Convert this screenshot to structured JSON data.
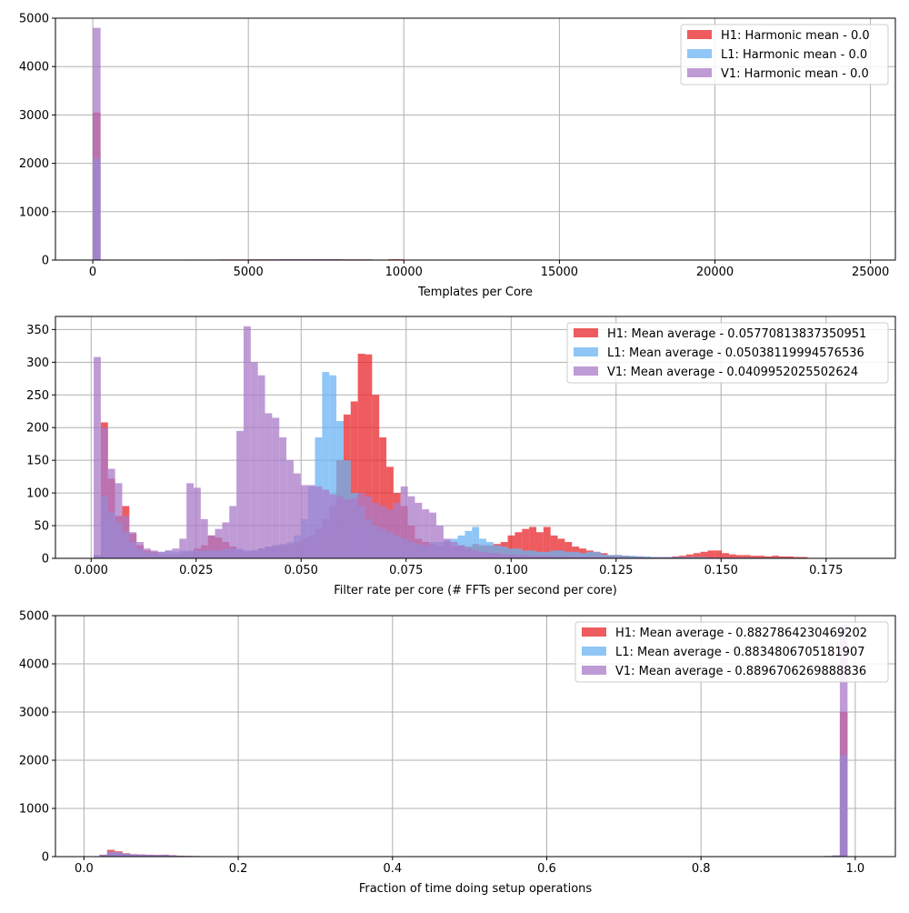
{
  "chart_data": [
    {
      "type": "histogram",
      "title": "",
      "xlabel": "Templates per Core",
      "ylabel": "",
      "xlim": [
        -1200,
        25800
      ],
      "ylim": [
        0,
        5000
      ],
      "xticks": [
        0,
        5000,
        10000,
        15000,
        20000,
        25000
      ],
      "yticks": [
        0,
        1000,
        2000,
        3000,
        4000,
        5000
      ],
      "grid": true,
      "legend_position": "top-right",
      "bin_edges": [
        0,
        250,
        2200,
        3000,
        4000,
        5000,
        6000,
        7000,
        8000,
        9000,
        9500,
        10000
      ],
      "series": [
        {
          "name": "H1: Harmonic mean  - 0.0",
          "color": "#e8262a",
          "counts": [
            3050,
            0,
            8,
            10,
            12,
            14,
            16,
            18,
            14,
            10,
            18
          ]
        },
        {
          "name": "L1: Harmonic mean  - 0.0",
          "color": "#69b3f2",
          "counts": [
            2100,
            0,
            6,
            8,
            10,
            12,
            14,
            14,
            12,
            8,
            4
          ]
        },
        {
          "name": "V1: Harmonic mean  - 0.0",
          "color": "#a97ac8",
          "counts": [
            4800,
            0,
            8,
            10,
            12,
            14,
            16,
            16,
            12,
            8,
            4
          ]
        }
      ]
    },
    {
      "type": "histogram",
      "title": "",
      "xlabel": "Filter rate per core (# FFTs per second per core)",
      "ylabel": "",
      "xlim": [
        -0.0085,
        0.1915
      ],
      "ylim": [
        0,
        370
      ],
      "xticks": [
        0.0,
        0.025,
        0.05,
        0.075,
        0.1,
        0.125,
        0.15,
        0.175
      ],
      "xtick_labels": [
        "0.000",
        "0.025",
        "0.050",
        "0.075",
        "0.100",
        "0.125",
        "0.150",
        "0.175"
      ],
      "yticks": [
        0,
        50,
        100,
        150,
        200,
        250,
        300,
        350
      ],
      "grid": true,
      "legend_position": "top-right",
      "bin_start": 0.0006,
      "bin_width": 0.0017,
      "series": [
        {
          "name": "H1: Mean average - 0.05770813837350951",
          "color": "#e8262a",
          "counts": [
            5,
            208,
            122,
            65,
            80,
            38,
            20,
            12,
            10,
            6,
            5,
            5,
            8,
            10,
            15,
            20,
            35,
            32,
            25,
            18,
            12,
            10,
            12,
            15,
            18,
            20,
            20,
            22,
            25,
            30,
            35,
            45,
            60,
            80,
            150,
            220,
            240,
            313,
            312,
            250,
            185,
            140,
            100,
            80,
            50,
            30,
            25,
            22,
            20,
            25,
            18,
            20,
            18,
            22,
            20,
            20,
            22,
            25,
            35,
            40,
            45,
            48,
            40,
            48,
            35,
            30,
            25,
            18,
            15,
            12,
            10,
            8,
            5,
            5,
            4,
            3,
            3,
            2,
            2,
            2,
            2,
            3,
            4,
            6,
            8,
            10,
            12,
            12,
            8,
            6,
            5,
            5,
            4,
            4,
            3,
            4,
            3,
            3,
            2,
            2
          ]
        },
        {
          "name": "L1: Mean average - 0.05038119994576536",
          "color": "#69b3f2",
          "counts": [
            5,
            95,
            70,
            55,
            40,
            25,
            15,
            10,
            8,
            10,
            12,
            10,
            12,
            12,
            12,
            12,
            12,
            12,
            15,
            15,
            15,
            12,
            12,
            15,
            18,
            20,
            22,
            25,
            35,
            60,
            110,
            185,
            285,
            280,
            210,
            150,
            100,
            80,
            60,
            50,
            45,
            40,
            35,
            30,
            25,
            22,
            20,
            25,
            25,
            28,
            30,
            35,
            42,
            48,
            30,
            25,
            20,
            18,
            15,
            15,
            12,
            12,
            10,
            10,
            12,
            12,
            10,
            10,
            8,
            10,
            10,
            6,
            5,
            5,
            4,
            4,
            3,
            3,
            2,
            2,
            2,
            2,
            2,
            2,
            2,
            2,
            1,
            1,
            1,
            1,
            1,
            1,
            1,
            1,
            1,
            1,
            1,
            0,
            0,
            0
          ]
        },
        {
          "name": "V1: Mean average - 0.0409952025502624",
          "color": "#a97ac8",
          "counts": [
            308,
            200,
            137,
            115,
            65,
            40,
            25,
            15,
            12,
            10,
            12,
            15,
            30,
            115,
            108,
            60,
            35,
            45,
            55,
            80,
            195,
            355,
            300,
            280,
            222,
            215,
            185,
            150,
            130,
            112,
            112,
            110,
            105,
            98,
            95,
            90,
            92,
            100,
            95,
            85,
            80,
            75,
            85,
            110,
            95,
            85,
            75,
            70,
            50,
            30,
            25,
            20,
            15,
            12,
            10,
            8,
            8,
            6,
            6,
            5,
            5,
            4,
            4,
            4,
            3,
            3,
            3,
            2,
            2,
            2,
            2,
            2,
            2,
            1,
            1,
            1,
            1,
            1,
            1,
            1,
            1,
            1,
            1,
            1,
            1,
            1,
            1,
            1,
            1,
            1,
            1,
            1,
            1,
            1,
            1,
            1,
            1,
            1,
            0,
            0
          ]
        }
      ]
    },
    {
      "type": "histogram",
      "title": "",
      "xlabel": "Fraction of time doing setup operations",
      "ylabel": "",
      "xlim": [
        -0.037,
        1.052
      ],
      "ylim": [
        0,
        5000
      ],
      "xticks": [
        0.0,
        0.2,
        0.4,
        0.6,
        0.8,
        1.0
      ],
      "xtick_labels": [
        "0.0",
        "0.2",
        "0.4",
        "0.6",
        "0.8",
        "1.0"
      ],
      "yticks": [
        0,
        1000,
        2000,
        3000,
        4000,
        5000
      ],
      "grid": true,
      "legend_position": "top-right",
      "bin_start": 0.0,
      "bin_width": 0.01,
      "series": [
        {
          "name": "H1: Mean average - 0.8827864230469202",
          "color": "#e8262a",
          "counts": [
            0,
            8,
            40,
            140,
            110,
            70,
            50,
            45,
            40,
            35,
            40,
            30,
            20,
            15,
            12,
            10,
            10,
            8,
            8,
            6,
            5,
            4,
            8,
            10,
            5,
            3,
            3,
            2,
            2,
            2,
            1,
            1,
            1,
            1,
            1,
            1,
            1,
            1,
            1,
            1,
            1,
            1,
            1,
            1,
            1,
            1,
            1,
            1,
            1,
            1,
            1,
            1,
            1,
            1,
            1,
            1,
            1,
            1,
            1,
            1,
            1,
            1,
            1,
            1,
            1,
            1,
            1,
            1,
            1,
            1,
            1,
            1,
            1,
            1,
            1,
            1,
            1,
            1,
            1,
            1,
            1,
            1,
            1,
            1,
            1,
            1,
            1,
            1,
            1,
            1,
            1,
            1,
            1,
            1,
            2,
            5,
            10,
            20,
            3000,
            0
          ]
        },
        {
          "name": "L1: Mean average - 0.8834806705181907",
          "color": "#69b3f2",
          "counts": [
            0,
            5,
            35,
            100,
            90,
            60,
            45,
            40,
            35,
            30,
            35,
            25,
            18,
            12,
            10,
            8,
            8,
            6,
            6,
            5,
            4,
            3,
            6,
            8,
            4,
            2,
            2,
            2,
            2,
            1,
            1,
            1,
            1,
            1,
            1,
            1,
            1,
            1,
            1,
            1,
            1,
            1,
            1,
            1,
            1,
            1,
            1,
            1,
            1,
            1,
            1,
            1,
            1,
            1,
            1,
            1,
            1,
            1,
            1,
            1,
            1,
            1,
            1,
            1,
            1,
            1,
            1,
            1,
            1,
            1,
            1,
            1,
            1,
            1,
            1,
            1,
            1,
            1,
            1,
            1,
            1,
            1,
            1,
            1,
            1,
            1,
            1,
            1,
            1,
            1,
            1,
            1,
            1,
            1,
            2,
            5,
            10,
            20,
            2100,
            0
          ]
        },
        {
          "name": "V1: Mean average - 0.8896706269888836",
          "color": "#a97ac8",
          "counts": [
            0,
            5,
            30,
            90,
            80,
            55,
            45,
            40,
            35,
            30,
            35,
            25,
            15,
            12,
            10,
            8,
            8,
            6,
            6,
            5,
            4,
            3,
            6,
            8,
            4,
            2,
            2,
            2,
            2,
            1,
            1,
            1,
            1,
            1,
            1,
            1,
            1,
            1,
            1,
            1,
            1,
            1,
            1,
            1,
            1,
            1,
            1,
            1,
            1,
            1,
            1,
            1,
            1,
            1,
            1,
            1,
            1,
            1,
            1,
            1,
            1,
            1,
            1,
            1,
            1,
            1,
            1,
            1,
            1,
            1,
            1,
            1,
            1,
            1,
            1,
            1,
            1,
            1,
            1,
            1,
            1,
            1,
            1,
            1,
            1,
            1,
            1,
            1,
            1,
            1,
            1,
            1,
            1,
            1,
            2,
            8,
            15,
            25,
            4800,
            0
          ]
        }
      ]
    }
  ]
}
